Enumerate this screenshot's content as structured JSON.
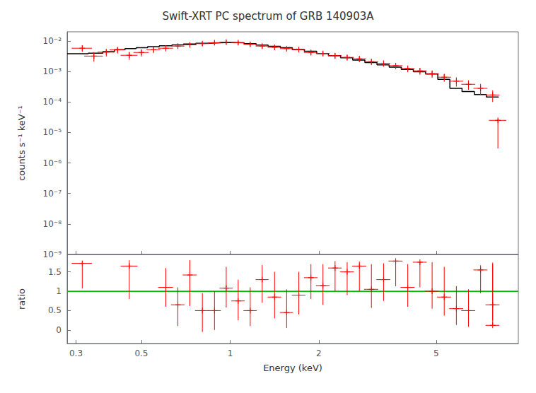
{
  "chart_data": [
    {
      "type": "errorbar",
      "title": "Swift-XRT PC spectrum of GRB 140903A",
      "ylabel": "counts s⁻¹ keV⁻¹",
      "log": true,
      "xlim": [
        0.28,
        9.5
      ],
      "xticks": [
        0.3,
        0.5,
        1,
        2,
        5
      ],
      "ylim": [
        1e-09,
        0.02
      ],
      "yticks": [
        {
          "value": 1e-09,
          "label": "10⁻⁹"
        },
        {
          "value": 1e-08,
          "label": "10⁻⁸"
        },
        {
          "value": 1e-07,
          "label": "10⁻⁷"
        },
        {
          "value": 1e-06,
          "label": "10⁻⁶"
        },
        {
          "value": 1e-05,
          "label": "10⁻⁵"
        },
        {
          "value": 0.0001,
          "label": "10⁻⁴"
        },
        {
          "value": 0.001,
          "label": "10⁻³"
        },
        {
          "value": 0.01,
          "label": "10⁻²"
        }
      ],
      "grid": false,
      "tick_labels": "y",
      "series": [
        {
          "type": "errorbar",
          "color": "#ff0000",
          "marker": "+",
          "x": [
            0.315,
            0.345,
            0.38,
            0.415,
            0.455,
            0.5,
            0.55,
            0.605,
            0.665,
            0.73,
            0.805,
            0.885,
            0.97,
            1.065,
            1.17,
            1.285,
            1.415,
            1.555,
            1.71,
            1.88,
            2.065,
            2.27,
            2.495,
            2.745,
            3.015,
            3.315,
            3.645,
            4.005,
            4.405,
            4.845,
            5.325,
            5.855,
            6.435,
            7.075,
            7.775
          ],
          "xerr": [
            0.025,
            0.025,
            0.025,
            0.025,
            0.03,
            0.03,
            0.03,
            0.035,
            0.035,
            0.04,
            0.045,
            0.045,
            0.05,
            0.055,
            0.06,
            0.065,
            0.075,
            0.08,
            0.09,
            0.1,
            0.11,
            0.12,
            0.135,
            0.15,
            0.165,
            0.18,
            0.2,
            0.22,
            0.24,
            0.265,
            0.29,
            0.32,
            0.35,
            0.385,
            0.425
          ],
          "values": [
            0.0058,
            0.0032,
            0.0043,
            0.0051,
            0.0034,
            0.0042,
            0.0052,
            0.0058,
            0.0068,
            0.0075,
            0.0082,
            0.0088,
            0.0092,
            0.0088,
            0.0078,
            0.0068,
            0.0062,
            0.0056,
            0.0052,
            0.0042,
            0.0039,
            0.0033,
            0.0029,
            0.0026,
            0.0021,
            0.00185,
            0.00155,
            0.00125,
            0.00105,
            0.00085,
            0.00065,
            0.00048,
            0.00038,
            0.00028,
            0.00017
          ],
          "yerr_lo": [
            0.0014,
            0.0011,
            0.0012,
            0.0012,
            0.001,
            0.0011,
            0.0012,
            0.0012,
            0.0013,
            0.0014,
            0.0014,
            0.0015,
            0.0015,
            0.0014,
            0.0013,
            0.0012,
            0.0011,
            0.001,
            0.00095,
            0.00085,
            0.00075,
            0.00068,
            0.00062,
            0.00058,
            0.00048,
            0.00042,
            0.00036,
            0.00031,
            0.00027,
            0.00023,
            0.00019,
            0.00016,
            0.00013,
            0.00011,
            7e-05
          ],
          "yerr_hi": [
            0.0014,
            0.0011,
            0.0012,
            0.0012,
            0.001,
            0.0011,
            0.0012,
            0.0012,
            0.0013,
            0.0014,
            0.0014,
            0.0015,
            0.0015,
            0.0014,
            0.0013,
            0.0012,
            0.0011,
            0.001,
            0.00095,
            0.00085,
            0.00075,
            0.00068,
            0.00062,
            0.00058,
            0.00048,
            0.00042,
            0.00036,
            0.00031,
            0.00027,
            0.00023,
            0.00019,
            0.00016,
            0.00013,
            0.00011,
            7e-05
          ]
        },
        {
          "type": "errorbar",
          "color": "#ff0000",
          "marker": "+",
          "x": [
            8.1
          ],
          "xerr": [
            0.55
          ],
          "values": [
            2.5e-05
          ],
          "yerr_lo": [
            2.2e-05
          ],
          "yerr_hi": [
            3e-06
          ]
        },
        {
          "type": "step",
          "color": "#000000",
          "x_edges": [
            0.28,
            0.33,
            0.37,
            0.405,
            0.44,
            0.48,
            0.525,
            0.575,
            0.635,
            0.695,
            0.765,
            0.845,
            0.925,
            1.015,
            1.115,
            1.225,
            1.345,
            1.48,
            1.625,
            1.785,
            1.965,
            2.155,
            2.37,
            2.605,
            2.865,
            3.15,
            3.465,
            3.81,
            4.185,
            4.605,
            5.065,
            5.565,
            6.12,
            6.74,
            7.4,
            8.15
          ],
          "values": [
            0.0038,
            0.004,
            0.0045,
            0.0052,
            0.0056,
            0.006,
            0.0065,
            0.007,
            0.0075,
            0.008,
            0.0084,
            0.0087,
            0.009,
            0.0087,
            0.0082,
            0.0074,
            0.0067,
            0.006,
            0.0053,
            0.0046,
            0.0039,
            0.0033,
            0.0028,
            0.00235,
            0.00195,
            0.00165,
            0.00138,
            0.00116,
            0.00098,
            0.00082,
            0.00055,
            0.00028,
            0.00022,
            0.000175,
            0.000145
          ]
        }
      ]
    },
    {
      "type": "errorbar",
      "xlabel": "Energy (keV)",
      "ylabel": "ratio",
      "log": "x",
      "xlim": [
        0.28,
        9.5
      ],
      "xticks": [
        0.3,
        0.5,
        1,
        2,
        5
      ],
      "ylim": [
        -0.35,
        1.95
      ],
      "yticks": [
        0,
        0.5,
        1,
        1.5
      ],
      "grid": false,
      "series": [
        {
          "type": "errorbar",
          "color": "#ff0000",
          "marker": "+",
          "x": [
            0.315,
            0.455,
            0.605,
            0.665,
            0.73,
            0.805,
            0.885,
            0.97,
            1.065,
            1.17,
            1.285,
            1.415,
            1.555,
            1.71,
            1.88,
            2.065,
            2.27,
            2.495,
            2.745,
            3.015,
            3.315,
            3.645,
            4.005,
            4.405,
            4.845,
            5.325,
            5.855,
            6.435,
            7.075,
            7.775
          ],
          "xerr": [
            0.025,
            0.03,
            0.035,
            0.035,
            0.04,
            0.045,
            0.045,
            0.05,
            0.055,
            0.06,
            0.065,
            0.075,
            0.08,
            0.09,
            0.1,
            0.11,
            0.12,
            0.135,
            0.15,
            0.165,
            0.18,
            0.2,
            0.22,
            0.24,
            0.265,
            0.29,
            0.32,
            0.35,
            0.385,
            0.425
          ],
          "values": [
            1.72,
            1.65,
            1.1,
            0.65,
            1.42,
            0.5,
            0.5,
            1.08,
            0.75,
            0.5,
            1.3,
            0.85,
            0.45,
            0.9,
            1.35,
            1.15,
            1.6,
            1.5,
            1.65,
            1.05,
            1.3,
            1.78,
            1.1,
            1.75,
            1.0,
            0.85,
            0.55,
            0.5,
            1.55,
            0.65
          ],
          "yerr_lo": [
            0.65,
            0.85,
            0.5,
            0.55,
            0.8,
            0.55,
            0.5,
            0.5,
            0.5,
            0.4,
            0.6,
            0.55,
            0.4,
            0.5,
            0.55,
            0.5,
            0.6,
            0.6,
            0.65,
            0.48,
            0.55,
            0.65,
            0.5,
            0.65,
            0.45,
            0.48,
            0.42,
            0.42,
            0.6,
            0.4
          ],
          "yerr_hi": [
            0.05,
            0.15,
            0.5,
            0.45,
            0.38,
            0.45,
            0.5,
            0.55,
            0.55,
            0.6,
            0.38,
            0.65,
            0.6,
            0.6,
            0.35,
            0.55,
            0.18,
            0.25,
            0.12,
            0.65,
            0.42,
            0.02,
            0.6,
            0.02,
            0.75,
            0.78,
            0.58,
            0.55,
            0.12,
            1.05
          ]
        },
        {
          "type": "errorbar",
          "color": "#ff0000",
          "marker": "+",
          "x": [
            7.775
          ],
          "xerr": [
            0.42
          ],
          "values": [
            0.12
          ],
          "yerr_lo": [
            0.0
          ],
          "yerr_hi": [
            1.62
          ]
        },
        {
          "type": "hline",
          "color": "#00bb00",
          "values": [
            1.0
          ]
        }
      ]
    }
  ]
}
